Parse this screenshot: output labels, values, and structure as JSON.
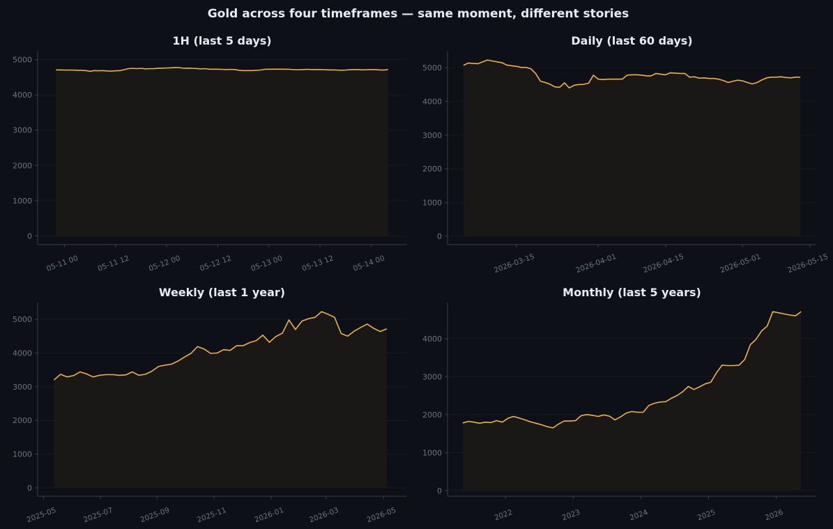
{
  "title": "Gold across four timeframes — same moment, different stories",
  "colors": {
    "background": "#0d1017",
    "line": "#f0b43c",
    "fill": "#1a1816",
    "axis": "#3a3e48",
    "grid": "#161a22",
    "tick": "#6f7480",
    "text": "#e8eaf0"
  },
  "chart_data": [
    {
      "type": "area",
      "title": "1H (last 5 days)",
      "xlabel": "",
      "ylabel": "",
      "ylim": [
        -250,
        5250
      ],
      "yticks": [
        0,
        1000,
        2000,
        3000,
        4000,
        5000
      ],
      "xticks": [
        {
          "pos": 2.0,
          "label": "05-11 00"
        },
        {
          "pos": 14.0,
          "label": "05-11 12"
        },
        {
          "pos": 26.0,
          "label": "05-12 00"
        },
        {
          "pos": 38.0,
          "label": "05-12 12"
        },
        {
          "pos": 50.0,
          "label": "05-13 00"
        },
        {
          "pos": 62.0,
          "label": "05-13 12"
        },
        {
          "pos": 74.0,
          "label": "05-14 00"
        }
      ],
      "xlim": [
        -4.3,
        82.3
      ],
      "x": [
        0,
        1,
        2,
        3,
        4,
        5,
        6,
        7,
        8,
        9,
        10,
        11,
        12,
        13,
        14,
        15,
        16,
        17,
        18,
        19,
        20,
        21,
        22,
        23,
        24,
        25,
        26,
        27,
        28,
        29,
        30,
        31,
        32,
        33,
        34,
        35,
        36,
        37,
        38,
        39,
        40,
        41,
        42,
        43,
        44,
        45,
        46,
        47,
        48,
        49,
        50,
        51,
        52,
        53,
        54,
        55,
        56,
        57,
        58,
        59,
        60,
        61,
        62,
        63,
        64,
        65,
        66,
        67,
        68,
        69,
        70,
        71,
        72,
        73,
        74,
        75,
        76,
        77,
        78
      ],
      "values": [
        4710,
        4710,
        4705,
        4705,
        4705,
        4700,
        4700,
        4690,
        4670,
        4690,
        4685,
        4690,
        4680,
        4675,
        4685,
        4690,
        4715,
        4745,
        4755,
        4745,
        4755,
        4740,
        4745,
        4745,
        4760,
        4760,
        4765,
        4770,
        4780,
        4775,
        4755,
        4760,
        4755,
        4750,
        4740,
        4745,
        4730,
        4730,
        4730,
        4725,
        4720,
        4725,
        4720,
        4700,
        4690,
        4690,
        4690,
        4700,
        4705,
        4725,
        4730,
        4730,
        4730,
        4730,
        4730,
        4725,
        4715,
        4715,
        4720,
        4725,
        4720,
        4720,
        4720,
        4715,
        4710,
        4710,
        4705,
        4700,
        4705,
        4715,
        4720,
        4720,
        4710,
        4715,
        4720,
        4720,
        4710,
        4705,
        4720
      ]
    },
    {
      "type": "area",
      "title": "Daily (last 60 days)",
      "xlabel": "",
      "ylabel": "",
      "ylim": [
        -250,
        5500
      ],
      "yticks": [
        0,
        1000,
        2000,
        3000,
        4000,
        5000
      ],
      "xticks": [
        {
          "pos": 11,
          "label": "2026-03-15"
        },
        {
          "pos": 28,
          "label": "2026-04-01"
        },
        {
          "pos": 42,
          "label": "2026-04-15"
        },
        {
          "pos": 58,
          "label": "2026-05-01"
        },
        {
          "pos": 72,
          "label": "2026-05-15"
        }
      ],
      "xlim": [
        -3.3,
        73.3
      ],
      "x": [
        0,
        1,
        3,
        5,
        6,
        8,
        9,
        10,
        11,
        12,
        13,
        14,
        15,
        16,
        17,
        18,
        19,
        20,
        21,
        22,
        23,
        24,
        25,
        26,
        27,
        28,
        29,
        30,
        31,
        32,
        33,
        34,
        35,
        36,
        37,
        38,
        39,
        40,
        41,
        42,
        43,
        44,
        45,
        46,
        47,
        48,
        49,
        50,
        51,
        52,
        53,
        54,
        55,
        56,
        57,
        58,
        59,
        60,
        61,
        62,
        63,
        64,
        65,
        66,
        67,
        68,
        69,
        70
      ],
      "values": [
        5070,
        5140,
        5120,
        5230,
        5200,
        5150,
        5080,
        5060,
        5040,
        5010,
        5010,
        4970,
        4830,
        4600,
        4560,
        4510,
        4430,
        4420,
        4550,
        4400,
        4480,
        4500,
        4510,
        4540,
        4780,
        4660,
        4650,
        4660,
        4660,
        4660,
        4660,
        4780,
        4790,
        4790,
        4780,
        4760,
        4760,
        4830,
        4810,
        4790,
        4850,
        4840,
        4830,
        4830,
        4720,
        4730,
        4690,
        4700,
        4680,
        4680,
        4660,
        4620,
        4560,
        4600,
        4630,
        4610,
        4560,
        4520,
        4560,
        4640,
        4700,
        4720,
        4720,
        4730,
        4710,
        4700,
        4720,
        4720
      ]
    },
    {
      "type": "area",
      "title": "Weekly (last 1 year)",
      "xlabel": "",
      "ylabel": "",
      "ylim": [
        -250,
        5500
      ],
      "yticks": [
        0,
        1000,
        2000,
        3000,
        4000,
        5000
      ],
      "xticks": [
        {
          "pos": 0.0,
          "label": "2025-05"
        },
        {
          "pos": 8.7,
          "label": "2025-07"
        },
        {
          "pos": 17.4,
          "label": "2025-09"
        },
        {
          "pos": 26.1,
          "label": "2025-11"
        },
        {
          "pos": 34.9,
          "label": "2026-01"
        },
        {
          "pos": 43.3,
          "label": "2026-03"
        },
        {
          "pos": 52.1,
          "label": "2026-05"
        }
      ],
      "xlim": [
        -0.9,
        55.6
      ],
      "x": [
        1.6,
        2.6,
        3.6,
        4.6,
        5.6,
        6.6,
        7.6,
        8.6,
        9.6,
        10.6,
        11.6,
        12.6,
        13.6,
        14.6,
        15.6,
        16.6,
        17.6,
        18.6,
        19.6,
        20.6,
        21.6,
        22.6,
        23.6,
        24.6,
        25.6,
        26.6,
        27.6,
        28.6,
        29.6,
        30.6,
        31.6,
        32.6,
        33.6,
        34.6,
        35.6,
        36.6,
        37.6,
        38.6,
        39.6,
        40.6,
        41.6,
        42.6,
        43.6,
        44.6,
        45.6,
        46.6,
        47.6,
        48.6,
        49.6,
        50.6,
        51.6,
        52.6
      ],
      "values": [
        3200,
        3370,
        3290,
        3330,
        3440,
        3380,
        3290,
        3340,
        3360,
        3360,
        3340,
        3350,
        3440,
        3340,
        3370,
        3460,
        3600,
        3640,
        3670,
        3760,
        3880,
        3990,
        4190,
        4120,
        3990,
        4000,
        4100,
        4080,
        4220,
        4220,
        4310,
        4370,
        4530,
        4320,
        4490,
        4590,
        4980,
        4700,
        4950,
        5020,
        5060,
        5230,
        5150,
        5060,
        4580,
        4500,
        4650,
        4760,
        4860,
        4730,
        4640,
        4720
      ]
    },
    {
      "type": "area",
      "title": "Monthly (last 5 years)",
      "xlabel": "",
      "ylabel": "",
      "ylim": [
        -150,
        4950
      ],
      "yticks": [
        0,
        1000,
        2000,
        3000,
        4000
      ],
      "xticks": [
        {
          "pos": 7.6,
          "label": "2022"
        },
        {
          "pos": 19.6,
          "label": "2023"
        },
        {
          "pos": 31.6,
          "label": "2024"
        },
        {
          "pos": 43.6,
          "label": "2025"
        },
        {
          "pos": 55.6,
          "label": "2026"
        }
      ],
      "xlim": [
        -2.7,
        62.7
      ],
      "x": [
        0,
        1,
        2,
        3,
        4,
        5,
        6,
        7,
        8,
        9,
        10,
        11,
        12,
        13,
        14,
        15,
        16,
        17,
        18,
        19,
        20,
        21,
        22,
        23,
        24,
        25,
        26,
        27,
        28,
        29,
        30,
        31,
        32,
        33,
        34,
        35,
        36,
        37,
        38,
        39,
        40,
        41,
        42,
        43,
        44,
        45,
        46,
        47,
        48,
        49,
        50,
        51,
        52,
        53,
        54,
        55,
        56,
        57,
        58,
        59,
        60
      ],
      "values": [
        1780,
        1820,
        1800,
        1770,
        1800,
        1790,
        1840,
        1800,
        1900,
        1950,
        1910,
        1860,
        1810,
        1770,
        1730,
        1680,
        1650,
        1750,
        1830,
        1830,
        1840,
        1970,
        2000,
        1980,
        1950,
        1990,
        1960,
        1860,
        1940,
        2040,
        2080,
        2060,
        2060,
        2240,
        2300,
        2330,
        2340,
        2430,
        2500,
        2600,
        2740,
        2660,
        2730,
        2810,
        2850,
        3100,
        3300,
        3290,
        3290,
        3300,
        3450,
        3840,
        3980,
        4200,
        4330,
        4710,
        4680,
        4650,
        4620,
        4600,
        4710
      ]
    }
  ]
}
